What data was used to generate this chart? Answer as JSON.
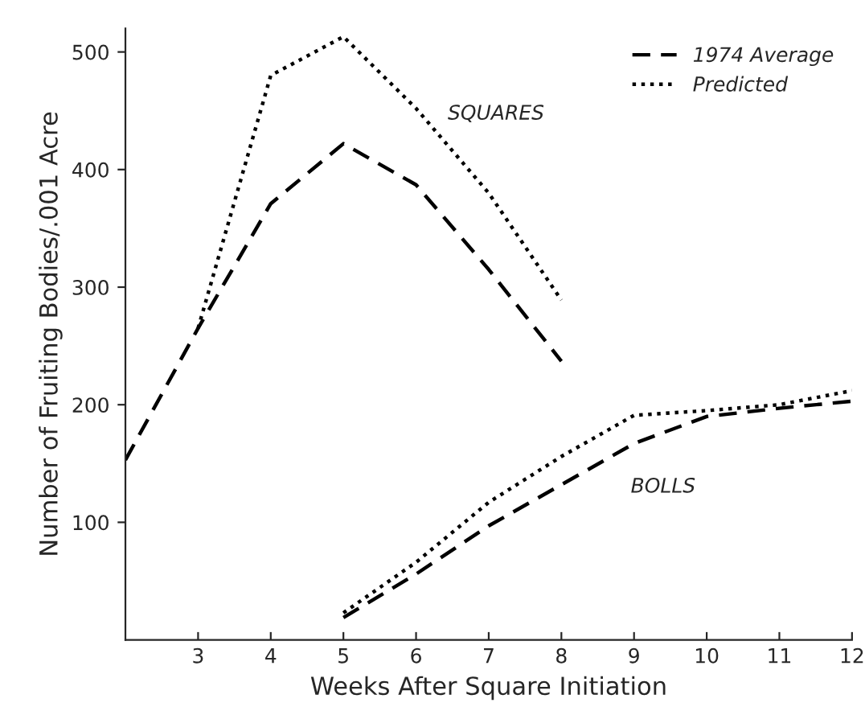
{
  "chart_data": {
    "type": "line",
    "xlabel": "Weeks After Square Initiation",
    "ylabel": "Number of Fruiting Bodies/.001 Acre",
    "xlim": [
      2,
      12
    ],
    "xticks": [
      3,
      4,
      5,
      6,
      7,
      8,
      9,
      10,
      11,
      12
    ],
    "ylim": [
      0,
      520
    ],
    "yticks": [
      100,
      200,
      300,
      400,
      500
    ],
    "grid": false,
    "legend": "top right",
    "marker": "none",
    "series": [
      {
        "name": "1974 Average",
        "color": "#000000",
        "line_style": "dashed",
        "x": [
          2,
          3,
          4,
          5,
          6,
          7,
          8
        ],
        "values": [
          153,
          265,
          371,
          422,
          387,
          315,
          237
        ]
      },
      {
        "name": "Predicted",
        "color": "#000000",
        "line_style": "dotted",
        "x": [
          3,
          4,
          5,
          6,
          7,
          8
        ],
        "values": [
          265,
          480,
          513,
          452,
          380,
          289
        ]
      },
      {
        "color": "#000000",
        "line_style": "dashed",
        "x": [
          5,
          6,
          7,
          8,
          9,
          10,
          11,
          12
        ],
        "values": [
          19,
          56,
          97,
          132,
          167,
          190,
          197,
          203
        ]
      },
      {
        "color": "#000000",
        "line_style": "dotted",
        "x": [
          5,
          6,
          7,
          8,
          9,
          10,
          11,
          12
        ],
        "values": [
          23,
          66,
          117,
          156,
          191,
          195,
          200,
          212
        ]
      }
    ],
    "annotations": [
      "SQUARES",
      "BOLLS"
    ]
  }
}
